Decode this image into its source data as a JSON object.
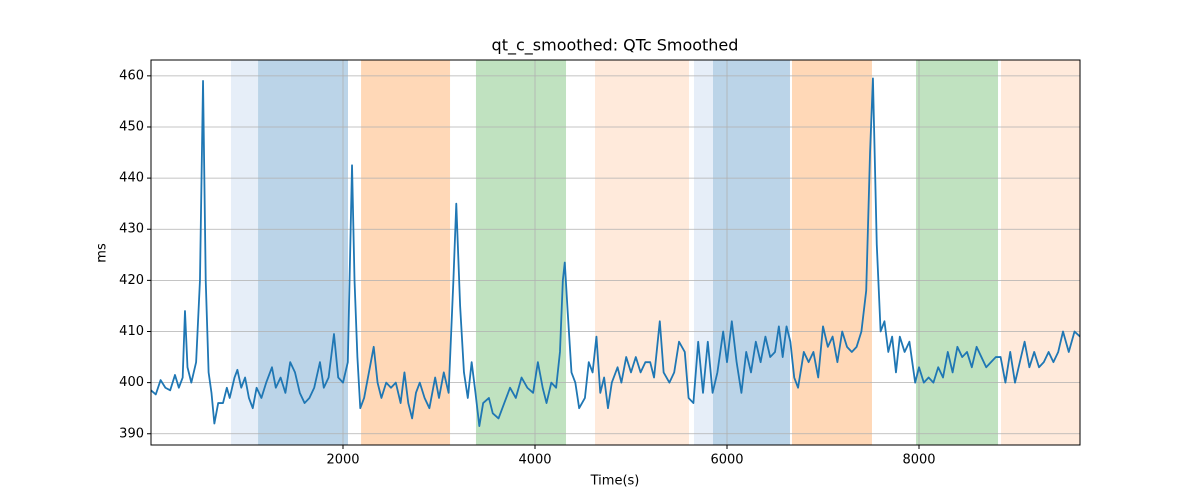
{
  "chart_data": {
    "type": "line",
    "title": "qt_c_smoothed: QTc Smoothed",
    "xlabel": "Time(s)",
    "ylabel": "ms",
    "xlim": [
      0,
      9677
    ],
    "ylim": [
      387.8,
      463.1
    ],
    "xticks": [
      2000,
      4000,
      6000,
      8000
    ],
    "yticks": [
      390,
      400,
      410,
      420,
      430,
      440,
      450,
      460
    ],
    "grid": true,
    "spans": [
      {
        "start": 833,
        "end": 1115,
        "color": "#e6eef8"
      },
      {
        "start": 1115,
        "end": 2052,
        "color": "#bbd4e8"
      },
      {
        "start": 2188,
        "end": 3115,
        "color": "#ffd8b7"
      },
      {
        "start": 3385,
        "end": 4323,
        "color": "#c0e2c0"
      },
      {
        "start": 4625,
        "end": 5604,
        "color": "#ffeadb"
      },
      {
        "start": 5656,
        "end": 5854,
        "color": "#e6eef8"
      },
      {
        "start": 5854,
        "end": 6656,
        "color": "#bbd4e8"
      },
      {
        "start": 6677,
        "end": 7510,
        "color": "#ffd8b7"
      },
      {
        "start": 7969,
        "end": 8823,
        "color": "#c0e2c0"
      },
      {
        "start": 8854,
        "end": 9677,
        "color": "#ffeadb"
      }
    ],
    "x": [
      0,
      50,
      100,
      150,
      200,
      250,
      290,
      330,
      354,
      380,
      420,
      470,
      510,
      542,
      570,
      600,
      630,
      660,
      700,
      750,
      790,
      820,
      870,
      900,
      940,
      980,
      1020,
      1060,
      1100,
      1150,
      1200,
      1260,
      1300,
      1350,
      1400,
      1450,
      1500,
      1550,
      1600,
      1650,
      1700,
      1760,
      1800,
      1850,
      1906,
      1950,
      2000,
      2050,
      2094,
      2120,
      2150,
      2180,
      2220,
      2280,
      2320,
      2360,
      2400,
      2450,
      2500,
      2550,
      2600,
      2640,
      2680,
      2720,
      2760,
      2800,
      2850,
      2900,
      2960,
      3000,
      3050,
      3100,
      3150,
      3180,
      3220,
      3260,
      3300,
      3340,
      3380,
      3420,
      3460,
      3520,
      3560,
      3620,
      3680,
      3740,
      3800,
      3860,
      3920,
      3980,
      4030,
      4080,
      4120,
      4170,
      4220,
      4260,
      4290,
      4310,
      4340,
      4380,
      4420,
      4460,
      4520,
      4560,
      4600,
      4640,
      4680,
      4720,
      4760,
      4800,
      4860,
      4900,
      4950,
      5000,
      5050,
      5100,
      5150,
      5200,
      5240,
      5300,
      5340,
      5400,
      5450,
      5500,
      5560,
      5600,
      5650,
      5700,
      5750,
      5800,
      5850,
      5900,
      5960,
      6000,
      6050,
      6100,
      6150,
      6200,
      6250,
      6300,
      6350,
      6400,
      6450,
      6500,
      6540,
      6580,
      6620,
      6660,
      6700,
      6740,
      6800,
      6850,
      6900,
      6950,
      7000,
      7050,
      7100,
      7150,
      7200,
      7250,
      7300,
      7350,
      7400,
      7450,
      7490,
      7520,
      7560,
      7600,
      7640,
      7680,
      7720,
      7760,
      7800,
      7850,
      7900,
      7960,
      8000,
      8050,
      8100,
      8150,
      8200,
      8250,
      8300,
      8350,
      8400,
      8450,
      8500,
      8550,
      8600,
      8650,
      8700,
      8750,
      8800,
      8850,
      8900,
      8950,
      9000,
      9050,
      9100,
      9150,
      9200,
      9250,
      9300,
      9350,
      9400,
      9450,
      9500,
      9560,
      9620,
      9677
    ],
    "series": [
      {
        "name": "qt_c_smoothed",
        "color": "#1f77b4",
        "values": [
          398.5,
          397.7,
          400.5,
          399,
          398.5,
          401.5,
          399,
          401,
          414,
          403,
          400,
          404,
          420,
          459,
          420,
          402,
          398,
          392,
          396,
          396,
          399,
          397,
          401,
          402.5,
          399,
          401,
          397,
          395,
          399,
          397,
          400,
          403,
          399,
          401,
          398,
          404,
          402,
          398,
          396,
          397,
          399,
          404,
          399,
          401,
          409.5,
          401,
          400,
          404,
          442.5,
          420,
          405,
          395,
          397,
          403,
          407,
          400,
          397,
          400,
          399,
          400,
          396,
          402,
          396,
          393,
          398,
          400,
          397,
          395,
          401,
          397,
          402,
          398,
          420,
          435,
          415,
          402,
          397,
          404,
          398,
          391.5,
          396,
          397,
          394,
          393,
          396,
          399,
          397,
          401,
          399,
          398,
          404,
          399,
          396,
          400,
          399,
          406,
          420,
          423.5,
          414,
          402,
          400,
          395,
          397,
          404,
          402,
          409,
          398,
          401,
          395,
          400,
          403,
          400,
          405,
          402,
          405,
          402,
          404,
          404,
          401,
          412,
          402,
          400,
          402,
          408,
          406,
          397,
          396,
          408,
          398,
          408,
          398,
          402,
          410,
          404,
          412,
          404,
          398,
          406,
          402,
          408,
          404,
          409,
          405,
          406,
          411,
          405,
          411,
          408,
          401,
          399,
          406,
          404,
          406,
          401,
          411,
          407,
          409,
          404,
          410,
          407,
          406,
          407,
          410,
          418,
          445,
          459.5,
          427,
          410,
          412,
          406,
          409,
          402,
          409,
          406,
          408,
          400,
          403,
          400,
          401,
          400,
          403,
          401,
          406,
          402,
          407,
          405,
          406,
          403,
          407,
          405,
          403,
          404,
          405,
          405,
          400,
          406,
          400,
          404,
          408,
          403,
          406,
          403,
          404,
          406,
          404,
          406,
          410,
          406,
          410,
          409
        ]
      }
    ]
  }
}
